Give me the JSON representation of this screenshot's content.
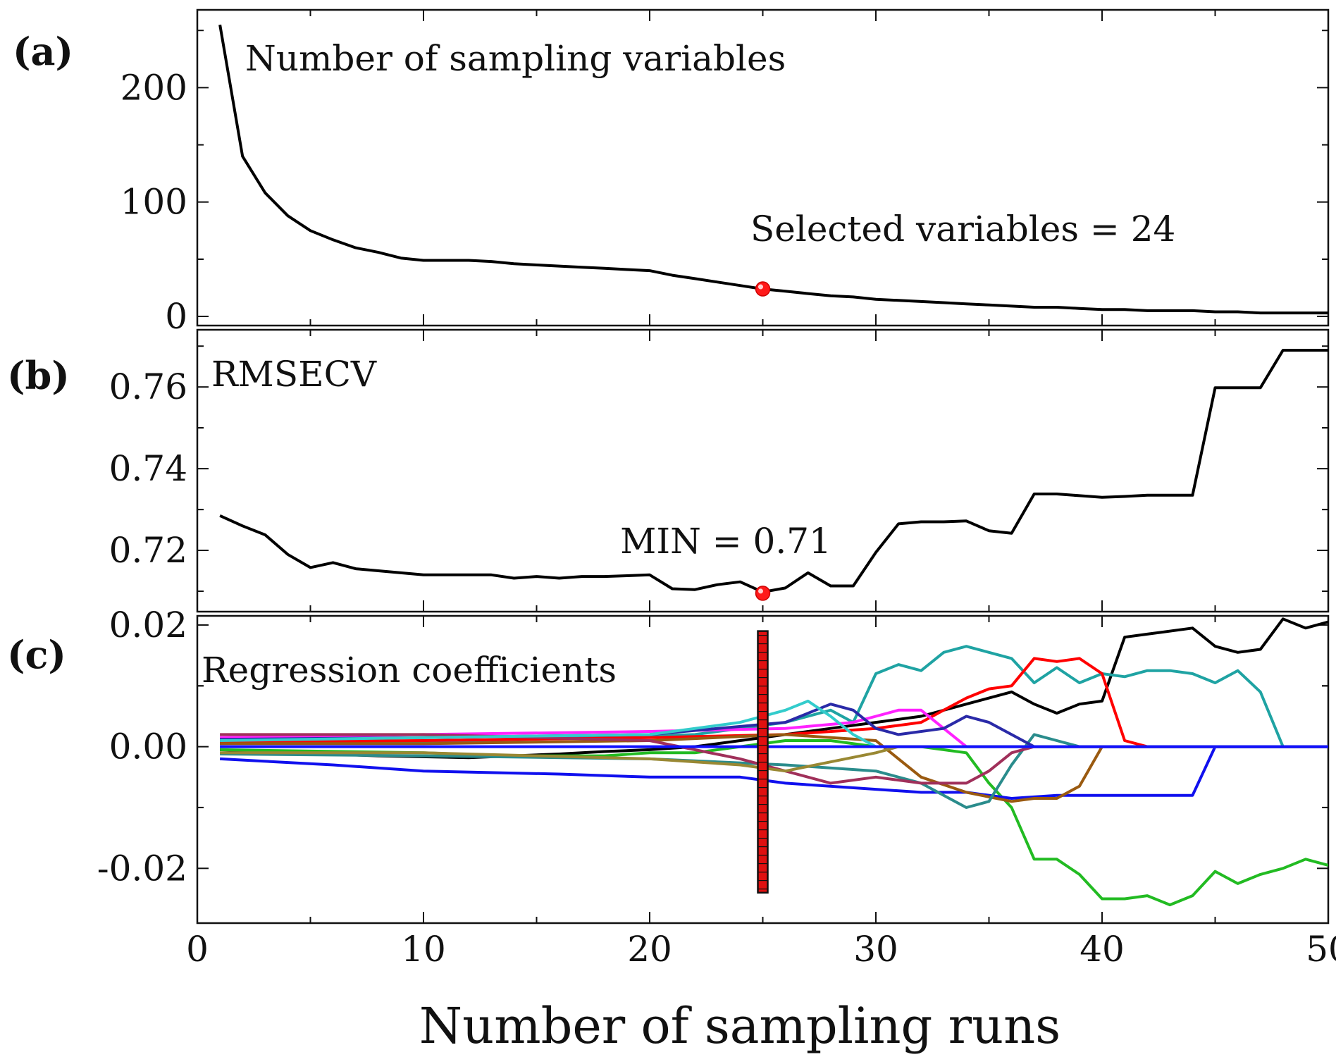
{
  "chart_data": {
    "type": "line",
    "xlabel": "Number of sampling runs",
    "xlim": [
      0,
      50
    ],
    "xticks": [
      "0",
      "10",
      "20",
      "30",
      "40",
      "50"
    ],
    "marker_run": 25,
    "panels": [
      {
        "id": "a",
        "letter": "(a)",
        "title": "Number of sampling variables",
        "ylim": [
          -8,
          268
        ],
        "yticks": [
          {
            "v": 0,
            "label": "0"
          },
          {
            "v": 100,
            "label": "100"
          },
          {
            "v": 200,
            "label": "200"
          }
        ],
        "annotation": {
          "text": "Selected variables = 24",
          "x": 25,
          "y": 24,
          "color": "#ff1a1a"
        },
        "series": [
          {
            "color": "#000000",
            "x": [
              1,
              2,
              3,
              4,
              5,
              6,
              7,
              8,
              9,
              10,
              11,
              12,
              13,
              14,
              15,
              16,
              17,
              18,
              19,
              20,
              21,
              22,
              23,
              24,
              25,
              26,
              27,
              28,
              29,
              30,
              31,
              32,
              33,
              34,
              35,
              36,
              37,
              38,
              39,
              40,
              41,
              42,
              43,
              44,
              45,
              46,
              47,
              48,
              49,
              50
            ],
            "y": [
              255,
              140,
              108,
              88,
              75,
              67,
              60,
              56,
              51,
              49,
              49,
              49,
              48,
              46,
              45,
              44,
              43,
              42,
              41,
              40,
              36,
              33,
              30,
              27,
              24,
              22,
              20,
              18,
              17,
              15,
              14,
              13,
              12,
              11,
              10,
              9,
              8,
              8,
              7,
              6,
              6,
              5,
              5,
              5,
              4,
              4,
              3,
              3,
              3,
              3
            ]
          }
        ]
      },
      {
        "id": "b",
        "letter": "(b)",
        "title": "RMSECV",
        "ylim": [
          0.705,
          0.774
        ],
        "yticks": [
          {
            "v": 0.72,
            "label": "0.72"
          },
          {
            "v": 0.74,
            "label": "0.74"
          },
          {
            "v": 0.76,
            "label": "0.76"
          }
        ],
        "annotation": {
          "text": "MIN = 0.71",
          "x": 25,
          "y": 0.7095,
          "color": "#ff1a1a"
        },
        "series": [
          {
            "color": "#000000",
            "x": [
              1,
              2,
              3,
              4,
              5,
              6,
              7,
              8,
              9,
              10,
              11,
              12,
              13,
              14,
              15,
              16,
              17,
              18,
              19,
              20,
              21,
              22,
              23,
              24,
              25,
              26,
              27,
              28,
              29,
              30,
              31,
              32,
              33,
              34,
              35,
              36,
              37,
              38,
              39,
              40,
              41,
              42,
              43,
              44,
              45,
              46,
              47,
              48,
              49,
              50
            ],
            "y": [
              0.7285,
              0.726,
              0.7238,
              0.719,
              0.7158,
              0.717,
              0.7155,
              0.715,
              0.7145,
              0.714,
              0.714,
              0.714,
              0.714,
              0.7132,
              0.7136,
              0.7132,
              0.7136,
              0.7136,
              0.7138,
              0.714,
              0.7106,
              0.7104,
              0.7116,
              0.7123,
              0.7098,
              0.7108,
              0.7145,
              0.7113,
              0.7113,
              0.7195,
              0.7265,
              0.727,
              0.727,
              0.7272,
              0.7248,
              0.7242,
              0.7338,
              0.7338,
              0.7334,
              0.733,
              0.7332,
              0.7335,
              0.7335,
              0.7335,
              0.7598,
              0.7598,
              0.7598,
              0.769,
              0.769,
              0.769
            ]
          }
        ]
      },
      {
        "id": "c",
        "letter": "(c)",
        "title": "Regression coefficients",
        "ylim": [
          -0.029,
          0.0215
        ],
        "yticks": [
          {
            "v": -0.02,
            "label": "-0.02"
          },
          {
            "v": 0,
            "label": "0.00"
          },
          {
            "v": 0.02,
            "label": "0.02"
          }
        ],
        "series": [
          {
            "color": "#000000",
            "x": [
              1,
              4,
              8,
              12,
              14,
              16,
              18,
              20,
              22,
              24,
              26,
              28,
              30,
              32,
              34,
              36,
              37,
              38,
              39,
              40,
              41,
              42,
              44,
              45,
              46,
              47,
              48,
              49,
              50
            ],
            "y": [
              -0.0005,
              -0.001,
              -0.0015,
              -0.0018,
              -0.0015,
              -0.0012,
              -0.0008,
              -0.0005,
              0,
              0.001,
              0.002,
              0.003,
              0.004,
              0.005,
              0.007,
              0.009,
              0.007,
              0.0055,
              0.007,
              0.0075,
              0.018,
              0.0185,
              0.0195,
              0.0165,
              0.0155,
              0.016,
              0.021,
              0.0195,
              0.0205
            ]
          },
          {
            "color": "#1fa3a3",
            "x": [
              1,
              6,
              12,
              18,
              22,
              26,
              28,
              29,
              30,
              31,
              32,
              33,
              34,
              35,
              36,
              37,
              38,
              39,
              40,
              41,
              42,
              43,
              44,
              45,
              46,
              47,
              48,
              50
            ],
            "y": [
              0.0005,
              0.0008,
              0.001,
              0.0015,
              0.002,
              0.004,
              0.006,
              0.004,
              0.012,
              0.0135,
              0.0125,
              0.0155,
              0.0165,
              0.0155,
              0.0145,
              0.0105,
              0.013,
              0.0105,
              0.012,
              0.0115,
              0.0125,
              0.0125,
              0.012,
              0.0105,
              0.0125,
              0.009,
              0,
              0
            ]
          },
          {
            "color": "#ff0000",
            "x": [
              1,
              10,
              20,
              26,
              30,
              32,
              33,
              34,
              35,
              36,
              37,
              38,
              39,
              40,
              41,
              42,
              50
            ],
            "y": [
              0.0008,
              0.001,
              0.0015,
              0.002,
              0.003,
              0.004,
              0.006,
              0.008,
              0.0095,
              0.01,
              0.0145,
              0.014,
              0.0145,
              0.012,
              0.001,
              0,
              0
            ]
          },
          {
            "color": "#22bb22",
            "x": [
              1,
              10,
              14,
              18,
              20,
              22,
              24,
              26,
              28,
              30,
              32,
              34,
              35,
              36,
              37,
              38,
              39,
              40,
              41,
              42,
              43,
              44,
              45,
              46,
              47,
              48,
              49,
              50
            ],
            "y": [
              -0.0005,
              -0.001,
              -0.0015,
              -0.0015,
              -0.001,
              -0.001,
              0,
              0.001,
              0.001,
              0,
              0,
              -0.001,
              -0.006,
              -0.01,
              -0.0185,
              -0.0185,
              -0.021,
              -0.025,
              -0.025,
              -0.0245,
              -0.026,
              -0.0245,
              -0.0205,
              -0.0225,
              -0.021,
              -0.02,
              -0.0185,
              -0.0195
            ]
          },
          {
            "color": "#1010ee",
            "x": [
              1,
              6,
              10,
              16,
              20,
              24,
              25,
              26,
              30,
              32,
              34,
              36,
              38,
              40,
              42,
              44,
              45,
              46,
              50
            ],
            "y": [
              -0.002,
              -0.003,
              -0.004,
              -0.0045,
              -0.005,
              -0.005,
              -0.0055,
              -0.006,
              -0.007,
              -0.0075,
              -0.0075,
              -0.0085,
              -0.008,
              -0.008,
              -0.008,
              -0.008,
              0,
              0,
              0
            ]
          },
          {
            "color": "#9a5a10",
            "x": [
              1,
              10,
              20,
              26,
              30,
              32,
              34,
              36,
              37,
              38,
              39,
              40,
              41,
              50
            ],
            "y": [
              0.0005,
              0.0005,
              0.001,
              0.002,
              0.001,
              -0.005,
              -0.0075,
              -0.009,
              -0.0085,
              -0.0085,
              -0.0065,
              0,
              0,
              0
            ]
          },
          {
            "color": "#2a8c8c",
            "x": [
              1,
              10,
              20,
              26,
              30,
              32,
              33,
              34,
              35,
              36,
              37,
              38,
              39,
              40,
              50
            ],
            "y": [
              -0.0012,
              -0.0015,
              -0.002,
              -0.003,
              -0.004,
              -0.006,
              -0.008,
              -0.01,
              -0.009,
              -0.003,
              0.002,
              0.001,
              0,
              0,
              0
            ]
          },
          {
            "color": "#ff22ff",
            "x": [
              1,
              10,
              20,
              26,
              29,
              30,
              31,
              32,
              33,
              34,
              50
            ],
            "y": [
              0.0015,
              0.002,
              0.0025,
              0.003,
              0.004,
              0.005,
              0.006,
              0.006,
              0.003,
              0,
              0
            ]
          },
          {
            "color": "#2a2aa8",
            "x": [
              1,
              10,
              20,
              26,
              28,
              29,
              30,
              31,
              33,
              34,
              35,
              36,
              37,
              50
            ],
            "y": [
              0.0012,
              0.0015,
              0.002,
              0.004,
              0.007,
              0.006,
              0.003,
              0.002,
              0.003,
              0.005,
              0.004,
              0.002,
              0,
              0
            ]
          },
          {
            "color": "#a0305a",
            "x": [
              1,
              10,
              20,
              24,
              26,
              28,
              30,
              32,
              34,
              35,
              36,
              37,
              50
            ],
            "y": [
              0.002,
              0.002,
              0.001,
              -0.002,
              -0.004,
              -0.006,
              -0.005,
              -0.006,
              -0.006,
              -0.004,
              -0.001,
              0,
              0
            ]
          },
          {
            "color": "#33cccc",
            "x": [
              1,
              10,
              20,
              24,
              25,
              26,
              27,
              28,
              29,
              30,
              50
            ],
            "y": [
              0.001,
              0.0015,
              0.002,
              0.004,
              0.005,
              0.006,
              0.0075,
              0.005,
              0.002,
              0,
              0
            ]
          },
          {
            "color": "#998833",
            "x": [
              1,
              10,
              20,
              24,
              26,
              28,
              30,
              31,
              50
            ],
            "y": [
              -0.001,
              -0.001,
              -0.002,
              -0.003,
              -0.004,
              -0.0025,
              -0.001,
              0,
              0
            ]
          },
          {
            "color": "#1010ff",
            "x": [
              1,
              50
            ],
            "y": [
              0,
              0
            ]
          }
        ]
      }
    ]
  }
}
